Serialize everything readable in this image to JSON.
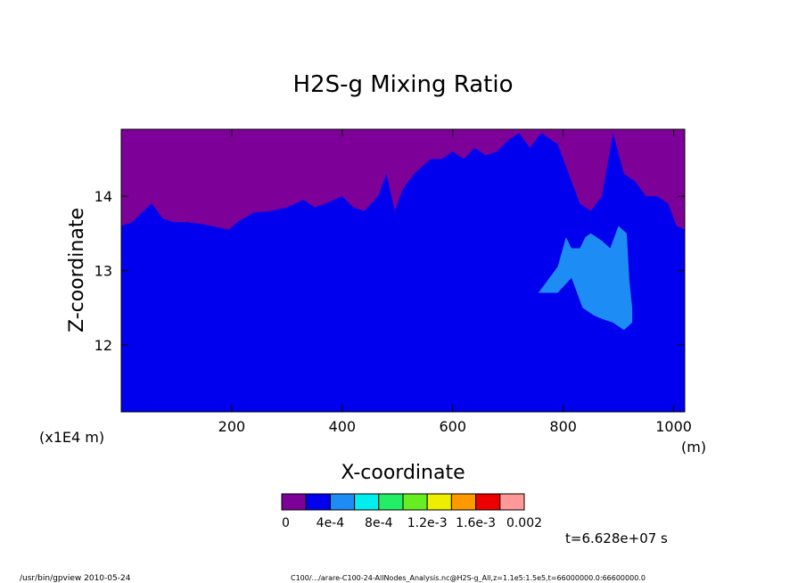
{
  "chart_data": {
    "type": "heatmap",
    "title": "H2S-g Mixing Ratio",
    "xlabel": "X-coordinate",
    "ylabel": "Z-coordinate",
    "x_unit_label": "(m)",
    "y_scale_label": "(x1E4 m)",
    "xlim": [
      0,
      1020
    ],
    "ylim": [
      11.1,
      14.9
    ],
    "x_ticks": [
      200,
      400,
      600,
      800,
      1000
    ],
    "y_ticks": [
      12,
      13,
      14
    ],
    "x_tick_labels": [
      "200",
      "400",
      "600",
      "800",
      "1000"
    ],
    "y_tick_labels": [
      "12",
      "13",
      "14"
    ],
    "levels": [
      0,
      0.0002,
      0.0004,
      0.0006,
      0.0008,
      0.001,
      0.0012,
      0.0014,
      0.0016,
      0.0018,
      0.002
    ],
    "level_colors": [
      "#7d0099",
      "#0000ee",
      "#1e8cf5",
      "#00eeee",
      "#22ee66",
      "#66ee22",
      "#eeee00",
      "#ff9900",
      "#ee0000",
      "#ff9999"
    ],
    "colorbar_labels": [
      "0",
      "4e-4",
      "8e-4",
      "1.2e-3",
      "1.6e-3",
      "0.002"
    ],
    "boundary_top": [
      [
        0,
        13.6
      ],
      [
        20,
        13.65
      ],
      [
        40,
        13.8
      ],
      [
        55,
        13.9
      ],
      [
        75,
        13.7
      ],
      [
        95,
        13.65
      ],
      [
        120,
        13.65
      ],
      [
        150,
        13.62
      ],
      [
        175,
        13.58
      ],
      [
        195,
        13.55
      ],
      [
        210,
        13.65
      ],
      [
        240,
        13.78
      ],
      [
        270,
        13.8
      ],
      [
        300,
        13.85
      ],
      [
        330,
        13.95
      ],
      [
        350,
        13.85
      ],
      [
        370,
        13.9
      ],
      [
        400,
        14.0
      ],
      [
        420,
        13.85
      ],
      [
        440,
        13.8
      ],
      [
        465,
        14.0
      ],
      [
        480,
        14.3
      ],
      [
        495,
        13.8
      ],
      [
        510,
        14.1
      ],
      [
        530,
        14.3
      ],
      [
        545,
        14.4
      ],
      [
        560,
        14.5
      ],
      [
        580,
        14.5
      ],
      [
        600,
        14.6
      ],
      [
        620,
        14.5
      ],
      [
        640,
        14.65
      ],
      [
        660,
        14.55
      ],
      [
        680,
        14.6
      ],
      [
        700,
        14.75
      ],
      [
        720,
        14.85
      ],
      [
        740,
        14.65
      ],
      [
        760,
        14.85
      ],
      [
        790,
        14.7
      ],
      [
        810,
        14.3
      ],
      [
        830,
        13.9
      ],
      [
        850,
        13.8
      ],
      [
        870,
        14.0
      ],
      [
        890,
        14.85
      ],
      [
        910,
        14.3
      ],
      [
        930,
        14.2
      ],
      [
        950,
        14.0
      ],
      [
        970,
        14.0
      ],
      [
        990,
        13.9
      ],
      [
        1005,
        13.6
      ],
      [
        1020,
        13.55
      ]
    ],
    "light_blue_region": [
      [
        755,
        12.7
      ],
      [
        790,
        13.05
      ],
      [
        805,
        13.45
      ],
      [
        815,
        13.3
      ],
      [
        830,
        13.3
      ],
      [
        840,
        13.45
      ],
      [
        850,
        13.5
      ],
      [
        870,
        13.4
      ],
      [
        885,
        13.3
      ],
      [
        900,
        13.6
      ],
      [
        915,
        13.5
      ],
      [
        920,
        12.85
      ],
      [
        925,
        12.5
      ],
      [
        925,
        12.3
      ],
      [
        910,
        12.2
      ],
      [
        890,
        12.3
      ],
      [
        870,
        12.35
      ],
      [
        855,
        12.4
      ],
      [
        835,
        12.5
      ],
      [
        815,
        12.9
      ],
      [
        790,
        12.7
      ]
    ],
    "time_label": "t=6.628e+07 s",
    "footer_left": "/usr/bin/gpview   2010-05-24",
    "footer_right": "C100/.../arare-C100-24-AllNodes_Analysis.nc@H2S-g_All,z=1.1e5:1.5e5,t=66000000.0:66600000.0"
  }
}
